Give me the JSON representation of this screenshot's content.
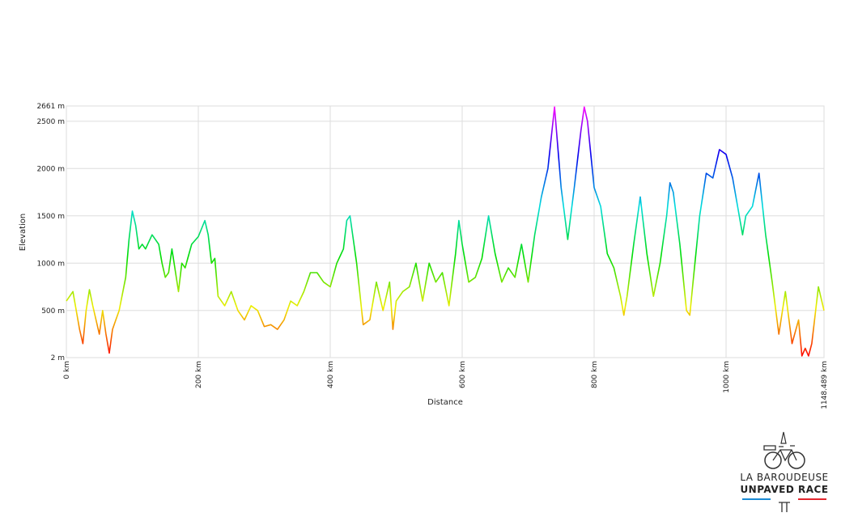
{
  "chart_data": {
    "type": "line",
    "x_label": "Distance",
    "y_label": "Elevation",
    "x": [
      0,
      10,
      20,
      25,
      30,
      35,
      40,
      50,
      55,
      60,
      65,
      70,
      75,
      80,
      90,
      95,
      100,
      105,
      110,
      115,
      120,
      130,
      140,
      145,
      150,
      155,
      160,
      170,
      175,
      180,
      190,
      200,
      210,
      215,
      220,
      225,
      230,
      240,
      250,
      260,
      270,
      280,
      290,
      300,
      310,
      320,
      330,
      340,
      350,
      360,
      370,
      380,
      390,
      400,
      410,
      420,
      425,
      430,
      440,
      450,
      460,
      470,
      480,
      490,
      495,
      500,
      510,
      520,
      530,
      540,
      550,
      560,
      570,
      580,
      590,
      595,
      600,
      610,
      620,
      630,
      640,
      650,
      660,
      670,
      680,
      690,
      700,
      710,
      720,
      730,
      740,
      750,
      760,
      770,
      780,
      785,
      790,
      800,
      810,
      820,
      830,
      840,
      845,
      850,
      860,
      870,
      880,
      890,
      900,
      910,
      915,
      920,
      930,
      940,
      945,
      950,
      960,
      970,
      980,
      990,
      1000,
      1010,
      1020,
      1025,
      1030,
      1040,
      1050,
      1060,
      1070,
      1080,
      1090,
      1100,
      1110,
      1115,
      1120,
      1125,
      1130,
      1140,
      1148.489
    ],
    "values": [
      600,
      700,
      300,
      150,
      500,
      720,
      550,
      250,
      500,
      250,
      50,
      300,
      400,
      500,
      850,
      1250,
      1550,
      1400,
      1150,
      1200,
      1150,
      1300,
      1200,
      1000,
      850,
      900,
      1150,
      700,
      1000,
      950,
      1200,
      1280,
      1450,
      1300,
      1000,
      1050,
      650,
      550,
      700,
      500,
      400,
      550,
      500,
      330,
      350,
      300,
      400,
      600,
      550,
      700,
      900,
      900,
      800,
      750,
      1000,
      1150,
      1450,
      1500,
      1000,
      350,
      400,
      800,
      500,
      800,
      300,
      600,
      700,
      750,
      1000,
      600,
      1000,
      800,
      900,
      550,
      1100,
      1450,
      1200,
      800,
      850,
      1050,
      1500,
      1100,
      800,
      950,
      850,
      1200,
      800,
      1300,
      1700,
      2000,
      2650,
      1800,
      1250,
      1800,
      2400,
      2650,
      2500,
      1800,
      1600,
      1100,
      950,
      650,
      450,
      650,
      1200,
      1700,
      1100,
      650,
      1000,
      1500,
      1850,
      1750,
      1200,
      500,
      450,
      800,
      1500,
      1950,
      1900,
      2200,
      2150,
      1900,
      1500,
      1300,
      1500,
      1600,
      1950,
      1300,
      800,
      250,
      700,
      150,
      400,
      20,
      100,
      20,
      150,
      750,
      500
    ],
    "color_scale": [
      "#ff0000",
      "#eeee00",
      "#00dd00",
      "#00dddd",
      "#0000ee",
      "#ff00ff"
    ],
    "xlim": [
      0,
      1148.489
    ],
    "ylim": [
      2,
      2661
    ],
    "xticks": [
      {
        "value": 0,
        "label": "0 km"
      },
      {
        "value": 200,
        "label": "200 km"
      },
      {
        "value": 400,
        "label": "400 km"
      },
      {
        "value": 600,
        "label": "600 km"
      },
      {
        "value": 800,
        "label": "800 km"
      },
      {
        "value": 1000,
        "label": "1000 km"
      },
      {
        "value": 1148.489,
        "label": "1148.489 km"
      }
    ],
    "yticks": [
      {
        "value": 2,
        "label": "2 m"
      },
      {
        "value": 500,
        "label": "500 m"
      },
      {
        "value": 1000,
        "label": "1000 m"
      },
      {
        "value": 1500,
        "label": "1500 m"
      },
      {
        "value": 2000,
        "label": "2000 m"
      },
      {
        "value": 2500,
        "label": "2500 m"
      },
      {
        "value": 2661,
        "label": "2661 m"
      }
    ],
    "grid": true
  },
  "logo": {
    "line1": "LA BAROUDEUSE",
    "line2": "UNPAVED RACE"
  }
}
